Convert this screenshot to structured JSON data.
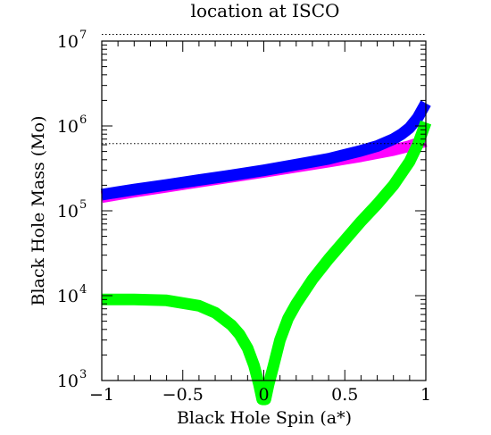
{
  "chart_data": {
    "type": "line",
    "title": "location at ISCO",
    "xlabel": "Black Hole Spin (a*)",
    "ylabel": "Black Hole Mass (Mo)",
    "xlim": [
      -1,
      1
    ],
    "ylim": [
      1000,
      10000000
    ],
    "yscale": "log",
    "x_ticks": [
      {
        "value": -1,
        "label": "−1"
      },
      {
        "value": -0.5,
        "label": "−0.5"
      },
      {
        "value": 0,
        "label": "0"
      },
      {
        "value": 0.5,
        "label": "0.5"
      },
      {
        "value": 1,
        "label": "1"
      }
    ],
    "y_ticks": [
      {
        "value": 1000,
        "base": "10",
        "exp": "3"
      },
      {
        "value": 10000,
        "base": "10",
        "exp": "4"
      },
      {
        "value": 100000,
        "base": "10",
        "exp": "5"
      },
      {
        "value": 1000000,
        "base": "10",
        "exp": "6"
      },
      {
        "value": 10000000,
        "base": "10",
        "exp": "7"
      }
    ],
    "reference_lines": [
      {
        "y": 12000000,
        "style": "dotted"
      },
      {
        "y": 620000,
        "style": "dotted"
      }
    ],
    "series": [
      {
        "color": "#ff00ff",
        "x": [
          -1.0,
          -0.8,
          -0.6,
          -0.4,
          -0.2,
          0.0,
          0.2,
          0.4,
          0.6,
          0.8,
          0.9,
          0.97,
          1.0
        ],
        "y": [
          145000,
          168000,
          192000,
          220000,
          252000,
          288000,
          330000,
          380000,
          440000,
          520000,
          580000,
          640000,
          660000
        ]
      },
      {
        "color": "#0000ff",
        "x": [
          -1.0,
          -0.8,
          -0.6,
          -0.4,
          -0.2,
          0.0,
          0.2,
          0.4,
          0.6,
          0.7,
          0.8,
          0.85,
          0.9,
          0.95,
          1.0
        ],
        "y": [
          155000,
          178000,
          202000,
          230000,
          262000,
          300000,
          350000,
          410000,
          510000,
          580000,
          700000,
          800000,
          950000,
          1250000,
          1850000
        ]
      },
      {
        "color": "#00ff00",
        "x": [
          -1.0,
          -0.8,
          -0.6,
          -0.4,
          -0.3,
          -0.2,
          -0.15,
          -0.1,
          -0.06,
          -0.03,
          -0.01,
          0.01,
          0.03,
          0.06,
          0.1,
          0.15,
          0.2,
          0.3,
          0.4,
          0.5,
          0.6,
          0.7,
          0.8,
          0.9,
          0.95,
          1.0
        ],
        "y": [
          9000,
          9000,
          8800,
          7600,
          6300,
          4500,
          3500,
          2400,
          1500,
          900,
          600,
          600,
          900,
          1500,
          3000,
          5400,
          8000,
          15500,
          27000,
          45000,
          75000,
          120000,
          200000,
          380000,
          600000,
          1100000
        ]
      }
    ]
  }
}
